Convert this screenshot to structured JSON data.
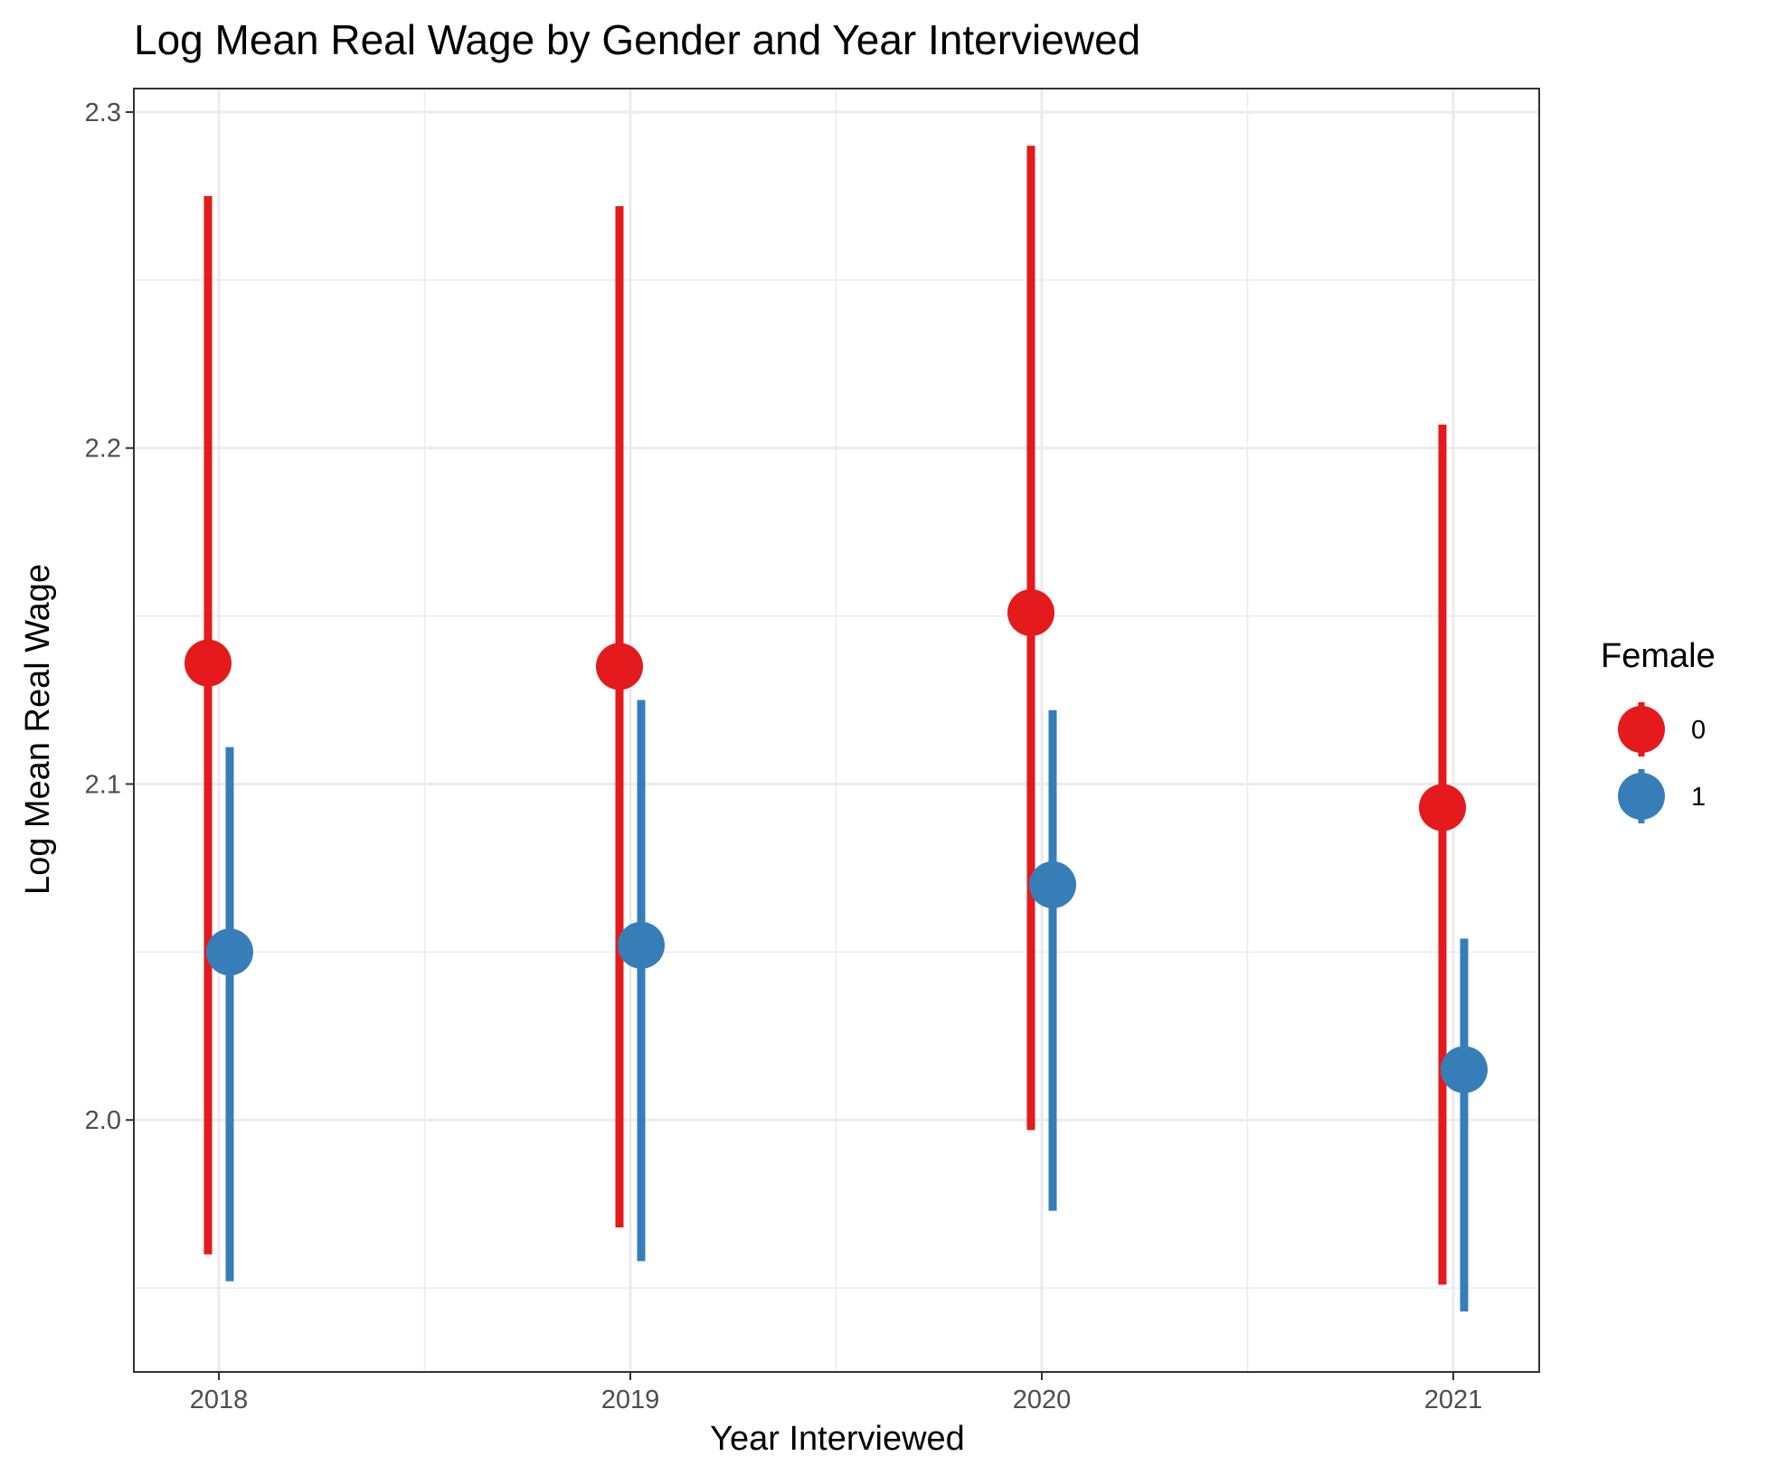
{
  "chart_data": {
    "type": "scatter",
    "title": "Log Mean Real Wage by Gender and Year Interviewed",
    "xlabel": "Year Interviewed",
    "ylabel": "Log Mean Real Wage",
    "categories": [
      "2018",
      "2019",
      "2020",
      "2021"
    ],
    "ylim": [
      1.925,
      2.307
    ],
    "yticks": [
      "2.0",
      "2.1",
      "2.2",
      "2.3"
    ],
    "grid": true,
    "legend": {
      "title": "Female",
      "position": "right"
    },
    "series": [
      {
        "name": "0",
        "color": "#e41a1c",
        "values": [
          2.136,
          2.135,
          2.151,
          2.093
        ],
        "lower": [
          1.96,
          1.968,
          1.997,
          1.951
        ],
        "upper": [
          2.275,
          2.272,
          2.29,
          2.207
        ]
      },
      {
        "name": "1",
        "color": "#377eb8",
        "values": [
          2.05,
          2.052,
          2.07,
          2.015
        ],
        "lower": [
          1.952,
          1.958,
          1.973,
          1.943
        ],
        "upper": [
          2.111,
          2.125,
          2.122,
          2.054
        ]
      }
    ]
  }
}
